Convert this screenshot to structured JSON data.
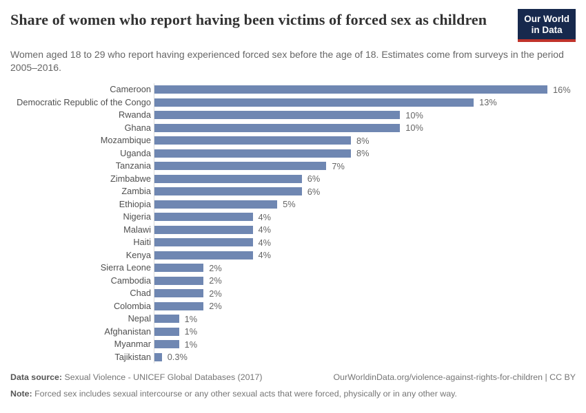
{
  "header": {
    "logo": {
      "line1": "Our World",
      "line2": "in Data"
    }
  },
  "chart_data": {
    "type": "bar",
    "orientation": "horizontal",
    "title": "Share of women who report having been victims of forced sex as children",
    "subtitle": "Women aged 18 to 29 who report having experienced forced sex before the age of 18. Estimates come from surveys in the period 2005–2016.",
    "categories": [
      "Cameroon",
      "Democratic Republic of the Congo",
      "Rwanda",
      "Ghana",
      "Mozambique",
      "Uganda",
      "Tanzania",
      "Zimbabwe",
      "Zambia",
      "Ethiopia",
      "Nigeria",
      "Malawi",
      "Haiti",
      "Kenya",
      "Sierra Leone",
      "Cambodia",
      "Chad",
      "Colombia",
      "Nepal",
      "Afghanistan",
      "Myanmar",
      "Tajikistan"
    ],
    "values": [
      16,
      13,
      10,
      10,
      8,
      8,
      7,
      6,
      6,
      5,
      4,
      4,
      4,
      4,
      2,
      2,
      2,
      2,
      1,
      1,
      1,
      0.3
    ],
    "value_labels": [
      "16%",
      "13%",
      "10%",
      "10%",
      "8%",
      "8%",
      "7%",
      "6%",
      "6%",
      "5%",
      "4%",
      "4%",
      "4%",
      "4%",
      "2%",
      "2%",
      "2%",
      "2%",
      "1%",
      "1%",
      "1%",
      "0.3%"
    ],
    "unit": "%",
    "xlim": [
      0,
      17.15
    ],
    "grid": false,
    "legend": false,
    "bar_color": "#6f87b2",
    "axis_line_color": "#dadada"
  },
  "footer": {
    "data_source_label": "Data source:",
    "data_source_text": " Sexual Violence - UNICEF Global Databases (2017)",
    "url_line": "OurWorldinData.org/violence-against-rights-for-children | CC BY",
    "note_label": "Note:",
    "note_text": " Forced sex includes sexual intercourse or any other sexual acts that were forced, physically or in any other way."
  }
}
